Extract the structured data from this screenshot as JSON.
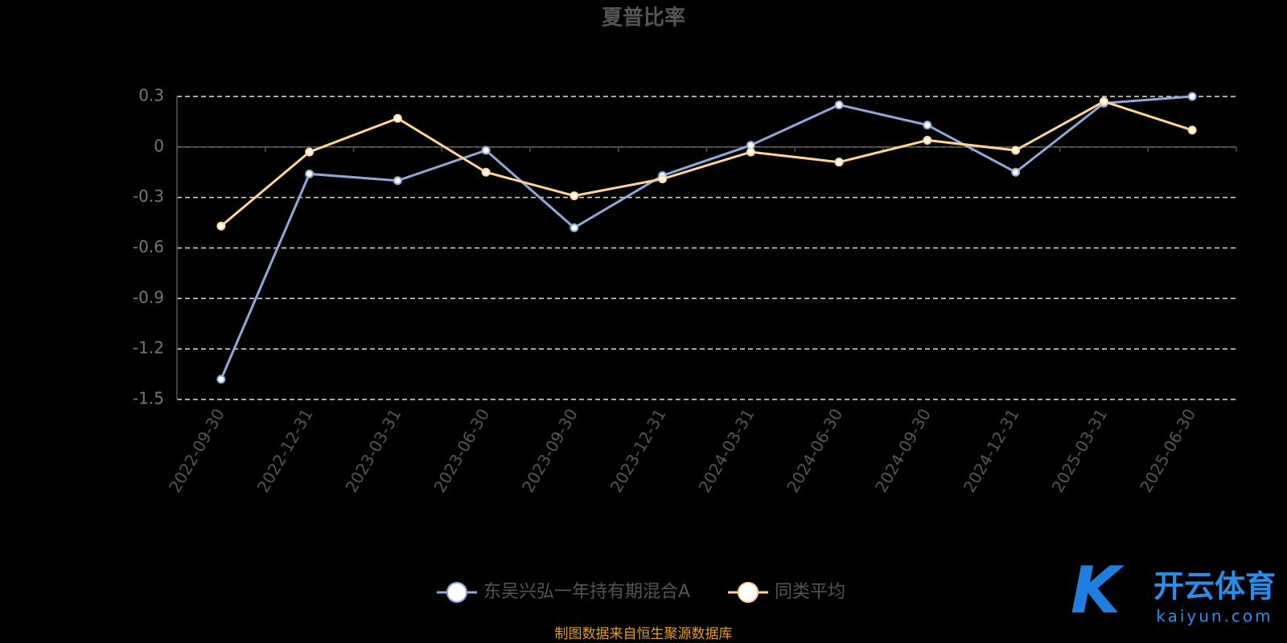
{
  "chart_data": {
    "type": "line",
    "title": "夏普比率",
    "categories": [
      "2022-09-30",
      "2022-12-31",
      "2023-03-31",
      "2023-06-30",
      "2023-09-30",
      "2023-12-31",
      "2024-03-31",
      "2024-06-30",
      "2024-09-30",
      "2024-12-31",
      "2025-03-31",
      "2025-06-30"
    ],
    "series": [
      {
        "name": "东吴兴弘一年持有期混合A",
        "color": "#8fa8d8",
        "values": [
          -1.38,
          -0.16,
          -0.2,
          -0.02,
          -0.48,
          -0.17,
          0.01,
          0.25,
          0.13,
          -0.15,
          0.26,
          0.3
        ]
      },
      {
        "name": "同类平均",
        "color": "#ffd591",
        "values": [
          -0.47,
          -0.03,
          0.17,
          -0.15,
          -0.29,
          -0.19,
          -0.03,
          -0.09,
          0.04,
          -0.02,
          0.27,
          0.1
        ]
      }
    ],
    "ylim": [
      -1.5,
      0.3
    ],
    "yticks": [
      0.3,
      0,
      -0.3,
      -0.6,
      -0.9,
      -1.2,
      -1.5
    ],
    "grid": true,
    "source": "制图数据来自恒生聚源数据库",
    "watermark": {
      "brand": "开云体育",
      "site": "kaiyun.com"
    }
  }
}
